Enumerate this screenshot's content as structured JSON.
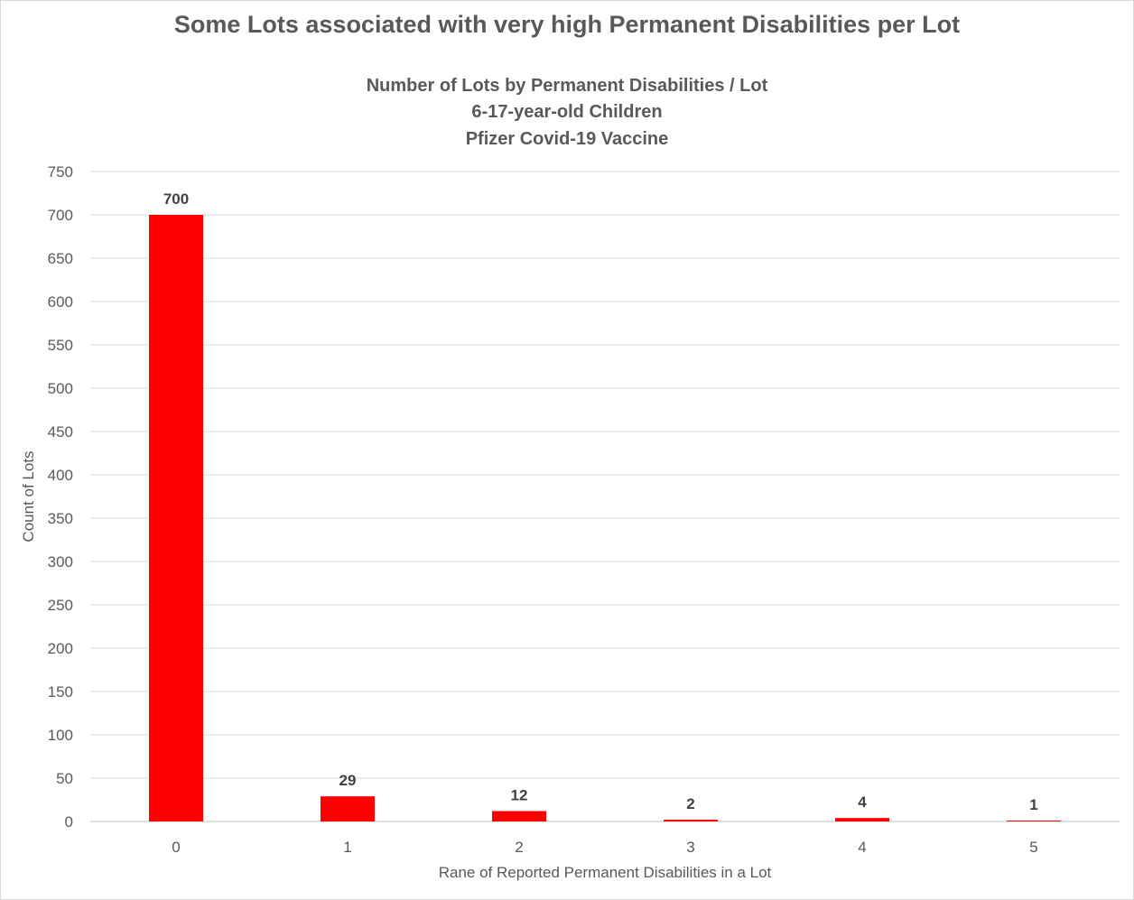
{
  "chart_data": {
    "type": "bar",
    "title": "Some Lots associated with very high Permanent Disabilities per Lot",
    "subtitle_lines": [
      "Number of Lots by Permanent Disabilities / Lot",
      "6-17-year-old Children",
      "Pfizer Covid-19 Vaccine"
    ],
    "xlabel": "Rane of Reported Permanent Disabilities in a Lot",
    "ylabel": "Count of Lots",
    "categories": [
      "0",
      "1",
      "2",
      "3",
      "4",
      "5"
    ],
    "values": [
      700,
      29,
      12,
      2,
      4,
      1
    ],
    "data_labels": [
      "700",
      "29",
      "12",
      "2",
      "4",
      "1"
    ],
    "ylim": [
      0,
      750
    ],
    "yticks": [
      0,
      50,
      100,
      150,
      200,
      250,
      300,
      350,
      400,
      450,
      500,
      550,
      600,
      650,
      700,
      750
    ],
    "grid": true,
    "legend": "none",
    "colors": {
      "bar": "#ff0000",
      "grid": "#d9d9d9",
      "text": "#595959",
      "data_label": "#404040"
    }
  }
}
